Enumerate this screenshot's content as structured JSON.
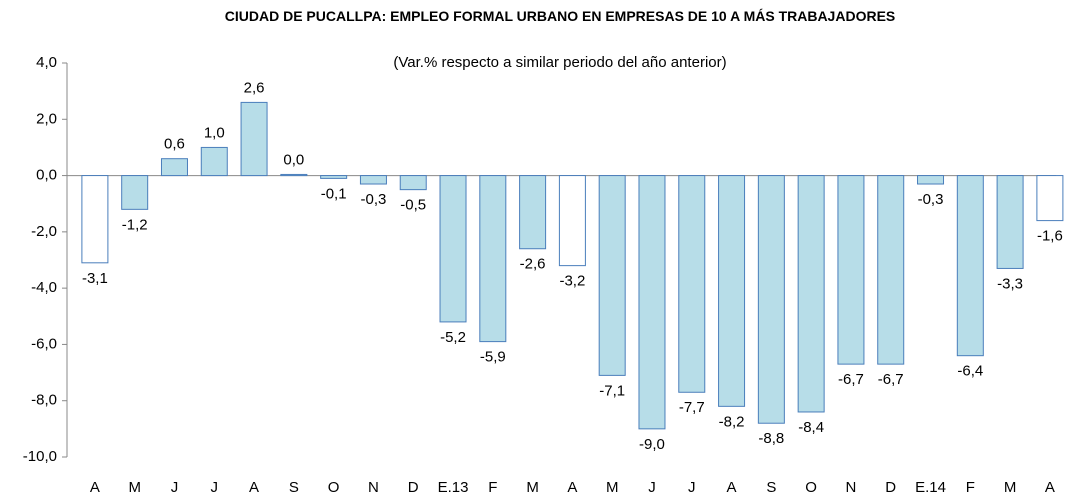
{
  "chart_data": {
    "type": "bar",
    "title": "CIUDAD DE PUCALLPA: EMPLEO FORMAL URBANO EN EMPRESAS DE 10 A MÁS TRABAJADORES",
    "subtitle": "(Var.% respecto a similar periodo del año anterior)",
    "categories": [
      "A",
      "M",
      "J",
      "J",
      "A",
      "S",
      "O",
      "N",
      "D",
      "E.13",
      "F",
      "M",
      "A",
      "M",
      "J",
      "J",
      "A",
      "S",
      "O",
      "N",
      "D",
      "E.14",
      "F",
      "M",
      "A"
    ],
    "values": [
      -3.1,
      -1.2,
      0.6,
      1.0,
      2.6,
      0.04,
      -0.1,
      -0.3,
      -0.5,
      -5.2,
      -5.9,
      -2.6,
      -3.2,
      -7.1,
      -9.0,
      -7.7,
      -8.2,
      -8.8,
      -8.4,
      -6.7,
      -6.7,
      -0.3,
      -6.4,
      -3.3,
      -1.6
    ],
    "value_labels": [
      "-3,1",
      "-1,2",
      "0,6",
      "1,0",
      "2,6",
      "0,0",
      "-0,1",
      "-0,3",
      "-0,5",
      "-5,2",
      "-5,9",
      "-2,6",
      "-3,2",
      "-7,1",
      "-9,0",
      "-7,7",
      "-8,2",
      "-8,8",
      "-8,4",
      "-6,7",
      "-6,7",
      "-0,3",
      "-6,4",
      "-3,3",
      "-1,6"
    ],
    "colors": [
      "#ffffff",
      "#b7dde8",
      "#b7dde8",
      "#b7dde8",
      "#b7dde8",
      "#b7dde8",
      "#b7dde8",
      "#b7dde8",
      "#b7dde8",
      "#b7dde8",
      "#b7dde8",
      "#b7dde8",
      "#ffffff",
      "#b7dde8",
      "#b7dde8",
      "#b7dde8",
      "#b7dde8",
      "#b7dde8",
      "#b7dde8",
      "#b7dde8",
      "#b7dde8",
      "#b7dde8",
      "#b7dde8",
      "#b7dde8",
      "#ffffff"
    ],
    "edge_color": "#4a7ebb",
    "ylim": [
      -10,
      4
    ],
    "yticks": [
      {
        "value": -10,
        "label": "-10,0"
      },
      {
        "value": -8,
        "label": "-8,0"
      },
      {
        "value": -6,
        "label": "-6,0"
      },
      {
        "value": -4,
        "label": "-4,0"
      },
      {
        "value": -2,
        "label": "-2,0"
      },
      {
        "value": 0,
        "label": "0,0"
      },
      {
        "value": 2,
        "label": "2,0"
      },
      {
        "value": 4,
        "label": "4,0"
      }
    ],
    "grid": false
  }
}
